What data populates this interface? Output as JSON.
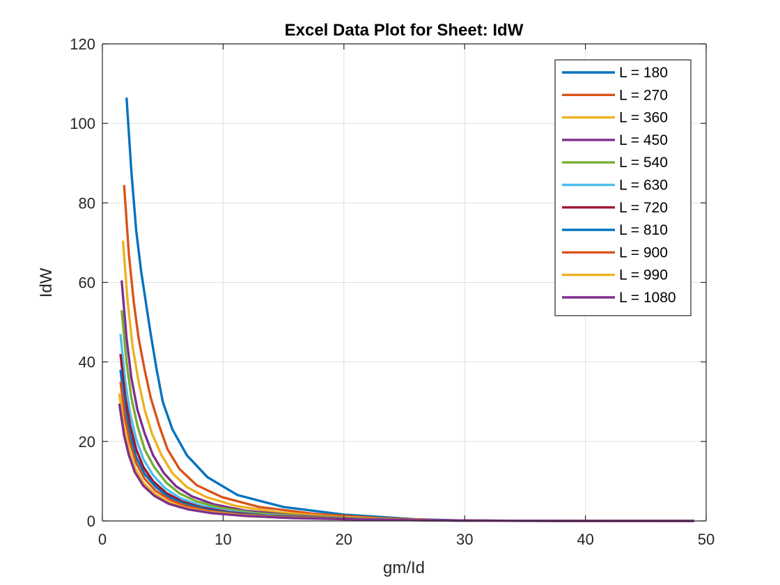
{
  "chart_data": {
    "type": "line",
    "title": "Excel Data Plot for Sheet: IdW",
    "xlabel": "gm/Id",
    "ylabel": "IdW",
    "xlim": [
      0,
      50
    ],
    "ylim": [
      0,
      120
    ],
    "xticks": [
      0,
      10,
      20,
      30,
      40,
      50
    ],
    "yticks": [
      0,
      20,
      40,
      60,
      80,
      100,
      120
    ],
    "grid": true,
    "legend_position": "top-right",
    "series": [
      {
        "name": "L = 180",
        "color": "#0072BD",
        "x": [
          2.0,
          2.4,
          2.8,
          3.2,
          3.6,
          4.0,
          4.5,
          5.0,
          5.8,
          7.0,
          8.7,
          11.2,
          15.0,
          20.0,
          26.0,
          30.0,
          35.0,
          40.0,
          45.0,
          49.0
        ],
        "y": [
          106.5,
          88,
          73,
          63,
          55,
          47,
          38,
          30,
          23,
          16.5,
          11,
          6.5,
          3.5,
          1.6,
          0.4,
          0.1,
          0.03,
          0.01,
          0.0,
          0.0
        ]
      },
      {
        "name": "L = 270",
        "color": "#D95319",
        "x": [
          1.8,
          2.2,
          2.6,
          3.0,
          3.5,
          4.0,
          4.7,
          5.4,
          6.4,
          7.8,
          9.9,
          13.0,
          17.5,
          23.0,
          28.0,
          33.0,
          40.0,
          49.0
        ],
        "y": [
          84.5,
          67,
          55,
          46,
          38,
          31,
          24,
          18,
          13,
          9,
          6,
          3.5,
          1.8,
          0.7,
          0.15,
          0.05,
          0.01,
          0.0
        ]
      },
      {
        "name": "L = 360",
        "color": "#EDB120",
        "x": [
          1.7,
          2.1,
          2.5,
          3.0,
          3.5,
          4.1,
          4.9,
          5.8,
          7.0,
          8.6,
          11.0,
          14.5,
          19.5,
          25.0,
          30.0,
          40.0,
          49.0
        ],
        "y": [
          70.5,
          55,
          44,
          35,
          28,
          22,
          16.5,
          12,
          8.5,
          6,
          3.8,
          2.2,
          1.0,
          0.3,
          0.05,
          0.01,
          0.0
        ]
      },
      {
        "name": "L = 450",
        "color": "#7E2F8E",
        "x": [
          1.6,
          2.0,
          2.4,
          2.9,
          3.5,
          4.2,
          5.1,
          6.1,
          7.4,
          9.2,
          11.8,
          15.8,
          21.0,
          27.0,
          33.0,
          40.0,
          49.0
        ],
        "y": [
          60.5,
          46,
          36,
          28,
          22,
          16.5,
          12,
          8.7,
          6.2,
          4.2,
          2.6,
          1.4,
          0.6,
          0.15,
          0.03,
          0.01,
          0.0
        ]
      },
      {
        "name": "L = 540",
        "color": "#77AC30",
        "x": [
          1.6,
          2.0,
          2.4,
          2.9,
          3.5,
          4.3,
          5.3,
          6.4,
          7.8,
          9.8,
          12.6,
          16.8,
          22.5,
          28.0,
          35.0,
          49.0
        ],
        "y": [
          53,
          40,
          31,
          24,
          18,
          13.5,
          9.6,
          6.9,
          4.9,
          3.3,
          2.0,
          1.1,
          0.45,
          0.12,
          0.02,
          0.0
        ]
      },
      {
        "name": "L = 630",
        "color": "#4DBEEE",
        "x": [
          1.5,
          1.9,
          2.3,
          2.8,
          3.4,
          4.2,
          5.2,
          6.4,
          7.9,
          10.0,
          13.0,
          17.5,
          23.5,
          29.0,
          36.0,
          49.0
        ],
        "y": [
          47,
          35,
          27,
          20.5,
          15.5,
          11.5,
          8.2,
          5.8,
          4.1,
          2.7,
          1.6,
          0.85,
          0.35,
          0.09,
          0.02,
          0.0
        ]
      },
      {
        "name": "L = 720",
        "color": "#A2142F",
        "x": [
          1.5,
          1.9,
          2.3,
          2.8,
          3.4,
          4.2,
          5.3,
          6.6,
          8.2,
          10.5,
          13.7,
          18.5,
          24.5,
          30.0,
          38.0,
          49.0
        ],
        "y": [
          42,
          31,
          24,
          18,
          13.5,
          10,
          7.0,
          4.9,
          3.4,
          2.2,
          1.3,
          0.7,
          0.28,
          0.07,
          0.01,
          0.0
        ]
      },
      {
        "name": "L = 810",
        "color": "#0072BD",
        "x": [
          1.5,
          1.9,
          2.3,
          2.8,
          3.5,
          4.4,
          5.5,
          6.9,
          8.6,
          11.0,
          14.5,
          19.5,
          25.5,
          31.0,
          39.0,
          49.0
        ],
        "y": [
          38,
          28,
          21.5,
          16,
          11.8,
          8.6,
          6.0,
          4.2,
          2.9,
          1.85,
          1.1,
          0.55,
          0.22,
          0.06,
          0.01,
          0.0
        ]
      },
      {
        "name": "L = 900",
        "color": "#D95319",
        "x": [
          1.5,
          1.9,
          2.3,
          2.8,
          3.5,
          4.4,
          5.6,
          7.0,
          8.8,
          11.4,
          15.0,
          20.0,
          26.0,
          32.0,
          40.0,
          49.0
        ],
        "y": [
          35,
          25.5,
          19.5,
          14.5,
          10.6,
          7.6,
          5.3,
          3.7,
          2.5,
          1.6,
          0.95,
          0.48,
          0.19,
          0.05,
          0.01,
          0.0
        ]
      },
      {
        "name": "L = 990",
        "color": "#EDB120",
        "x": [
          1.4,
          1.8,
          2.2,
          2.7,
          3.4,
          4.3,
          5.5,
          7.0,
          8.9,
          11.6,
          15.3,
          20.5,
          27.0,
          33.0,
          41.0,
          49.0
        ],
        "y": [
          32,
          23.5,
          18,
          13.3,
          9.6,
          6.9,
          4.7,
          3.2,
          2.2,
          1.4,
          0.82,
          0.42,
          0.16,
          0.04,
          0.01,
          0.0
        ]
      },
      {
        "name": "L = 1080",
        "color": "#7E2F8E",
        "x": [
          1.4,
          1.8,
          2.2,
          2.7,
          3.4,
          4.3,
          5.5,
          7.1,
          9.1,
          11.9,
          15.7,
          21.0,
          27.5,
          34.0,
          42.0,
          49.0
        ],
        "y": [
          29.5,
          21.5,
          16.5,
          12.2,
          8.8,
          6.3,
          4.3,
          2.9,
          1.95,
          1.25,
          0.72,
          0.36,
          0.14,
          0.03,
          0.01,
          0.0
        ]
      }
    ]
  }
}
